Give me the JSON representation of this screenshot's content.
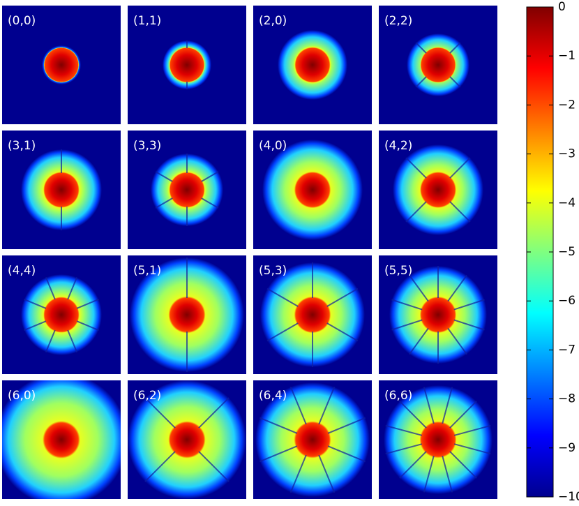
{
  "chart_data": {
    "type": "image-grid",
    "panels": [
      "(0,0)",
      "(1,1)",
      "(2,0)",
      "(2,2)",
      "(3,1)",
      "(3,3)",
      "(4,0)",
      "(4,2)",
      "(4,4)",
      "(5,1)",
      "(5,3)",
      "(5,5)",
      "(6,0)",
      "(6,2)",
      "(6,4)",
      "(6,6)"
    ],
    "colorbar": {
      "ylim": [
        -10,
        0
      ],
      "yticks": [
        0,
        {
          "value": -1,
          "label": "−1"
        },
        {
          "value": -2,
          "label": "−2"
        },
        {
          "value": -3,
          "label": "−3"
        },
        {
          "value": -4,
          "label": "−4"
        },
        {
          "value": -5,
          "label": "−5"
        },
        {
          "value": -6,
          "label": "−6"
        },
        {
          "value": -7,
          "label": "−7"
        },
        {
          "value": -8,
          "label": "−8"
        },
        {
          "value": -9,
          "label": "−9"
        },
        {
          "value": -10,
          "label": "−10"
        }
      ]
    }
  }
}
